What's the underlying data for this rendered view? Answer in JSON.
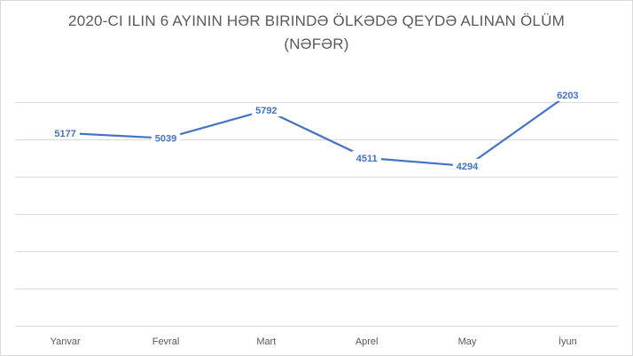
{
  "chart_data": {
    "type": "line",
    "title_line1": "2020-CI ILIN 6 AYININ HƏR BIRINDƏ ÖLKƏDƏ QEYDƏ ALINAN ÖLÜM",
    "title_line2": "(NƏFƏR)",
    "categories": [
      "Yanvar",
      "Fevral",
      "Mart",
      "Aprel",
      "May",
      "İyun"
    ],
    "series": [
      {
        "values": [
          5177,
          5039,
          5792,
          4511,
          4294,
          6203
        ],
        "color": "#4472c4"
      }
    ],
    "ylim": [
      0,
      7000
    ],
    "gridlines": [
      1000,
      2000,
      3000,
      4000,
      5000,
      6000
    ],
    "y_axis_labels_shown": false,
    "grid": true,
    "legend": "none",
    "data_labels": true
  }
}
